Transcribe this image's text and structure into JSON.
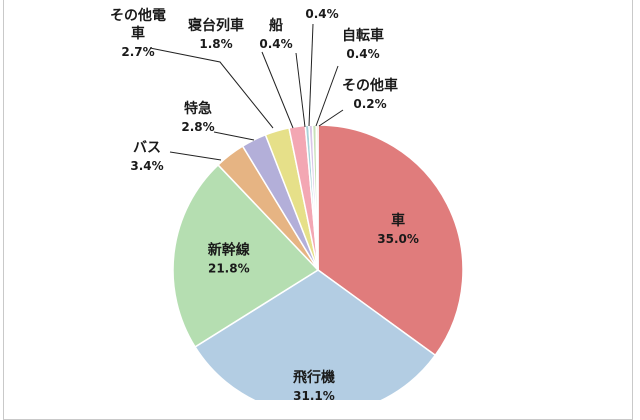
{
  "chart_data": {
    "type": "pie",
    "title": "",
    "slices": [
      {
        "name": "車",
        "value": 35.0,
        "value_label": "35.0%",
        "color": "#e07c7c"
      },
      {
        "name": "飛行機",
        "value": 31.1,
        "value_label": "31.1%",
        "color": "#b3cde3"
      },
      {
        "name": "新幹線",
        "value": 21.8,
        "value_label": "21.8%",
        "color": "#b5deb1"
      },
      {
        "name": "バス",
        "value": 3.4,
        "value_label": "3.4%",
        "color": "#e6b483"
      },
      {
        "name": "特急",
        "value": 2.8,
        "value_label": "2.8%",
        "color": "#b3afd9"
      },
      {
        "name": "その他電車",
        "value": 2.7,
        "value_label": "2.7%",
        "color": "#e6e089"
      },
      {
        "name": "寝台列車",
        "value": 1.8,
        "value_label": "1.8%",
        "color": "#f3a7b3"
      },
      {
        "name": "船",
        "value": 0.4,
        "value_label": "0.4%",
        "color": "#a9d3d9"
      },
      {
        "name": "",
        "value": 0.4,
        "value_label": "0.4%",
        "color": "#d9c6e8"
      },
      {
        "name": "自転車",
        "value": 0.4,
        "value_label": "0.4%",
        "color": "#c7e0b7"
      },
      {
        "name": "その他車",
        "value": 0.2,
        "value_label": "0.2%",
        "color": "#f0cfa3"
      }
    ]
  }
}
